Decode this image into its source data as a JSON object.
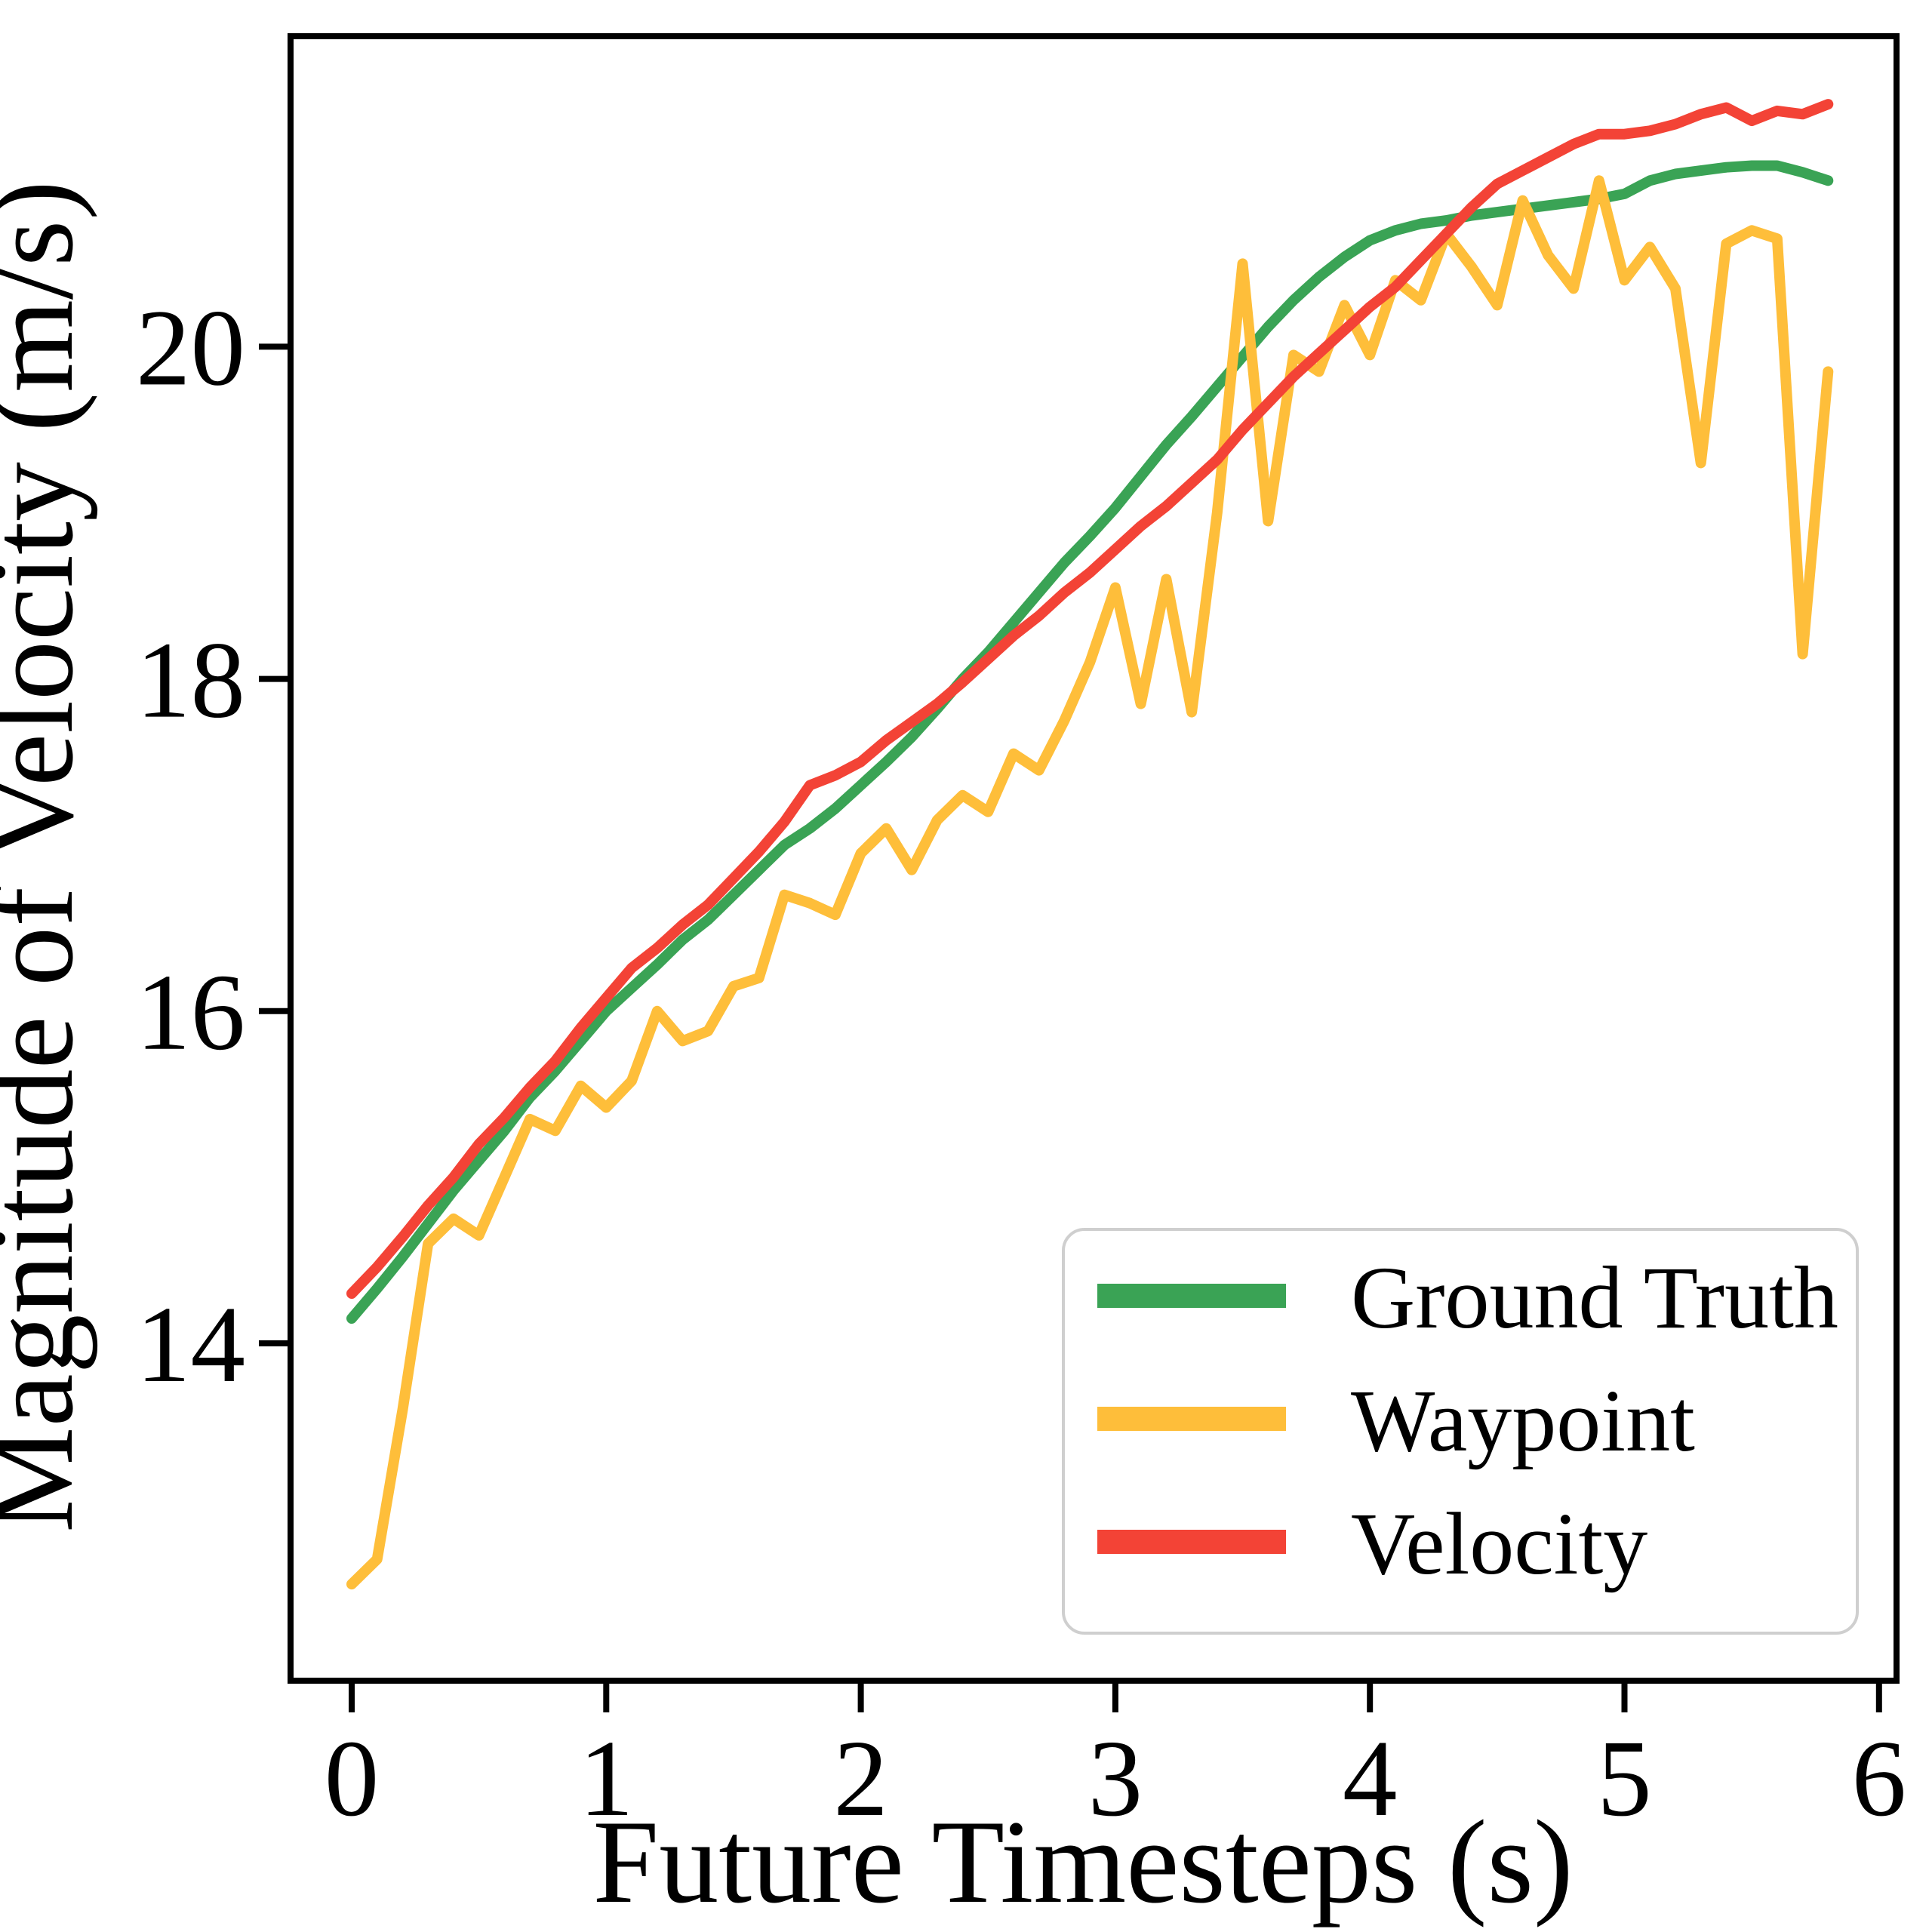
{
  "figure": {
    "background": "#ffffff",
    "plot_border_color": "#000000"
  },
  "axes": {
    "xlabel": "Future Timesteps (s)",
    "ylabel": "Magnitude of Velocity (m/s)"
  },
  "legend": {
    "position": "lower right",
    "entries": [
      {
        "label": "Ground Truth",
        "color": "#3AA355"
      },
      {
        "label": "Waypoint",
        "color": "#FEBE3A"
      },
      {
        "label": "Velocity",
        "color": "#F34336"
      }
    ]
  },
  "chart_data": {
    "type": "line",
    "title": "",
    "xlabel": "Future Timesteps (s)",
    "ylabel": "Magnitude of Velocity (m/s)",
    "x_ticks": [
      0,
      1,
      2,
      3,
      4,
      5,
      6
    ],
    "y_ticks": [
      14,
      16,
      18,
      20
    ],
    "xlim": [
      -0.25,
      6.07
    ],
    "ylim": [
      11.95,
      21.85
    ],
    "grid": false,
    "legend_position": "lower right",
    "x": [
      0.0,
      0.1,
      0.2,
      0.3,
      0.4,
      0.5,
      0.6,
      0.7,
      0.8,
      0.9,
      1.0,
      1.1,
      1.2,
      1.3,
      1.4,
      1.5,
      1.6,
      1.7,
      1.8,
      1.9,
      2.0,
      2.1,
      2.2,
      2.3,
      2.4,
      2.5,
      2.6,
      2.7,
      2.8,
      2.9,
      3.0,
      3.1,
      3.2,
      3.3,
      3.4,
      3.5,
      3.6,
      3.7,
      3.8,
      3.9,
      4.0,
      4.1,
      4.2,
      4.3,
      4.4,
      4.5,
      4.6,
      4.7,
      4.8,
      4.9,
      5.0,
      5.1,
      5.2,
      5.3,
      5.4,
      5.5,
      5.6,
      5.7,
      5.8
    ],
    "series": [
      {
        "name": "Ground Truth",
        "color": "#3AA355",
        "values": [
          14.15,
          14.33,
          14.52,
          14.72,
          14.92,
          15.1,
          15.28,
          15.48,
          15.64,
          15.82,
          16.0,
          16.14,
          16.28,
          16.43,
          16.55,
          16.7,
          16.85,
          17.0,
          17.1,
          17.22,
          17.36,
          17.5,
          17.65,
          17.82,
          18.0,
          18.16,
          18.34,
          18.52,
          18.7,
          18.86,
          19.03,
          19.22,
          19.41,
          19.58,
          19.76,
          19.94,
          20.12,
          20.28,
          20.42,
          20.54,
          20.64,
          20.7,
          20.74,
          20.76,
          20.79,
          20.81,
          20.83,
          20.85,
          20.87,
          20.89,
          20.92,
          21.0,
          21.04,
          21.06,
          21.08,
          21.09,
          21.09,
          21.05,
          21.0
        ]
      },
      {
        "name": "Waypoint",
        "color": "#FEBE3A",
        "values": [
          12.55,
          12.7,
          13.6,
          14.6,
          14.75,
          14.65,
          15.0,
          15.35,
          15.28,
          15.55,
          15.42,
          15.58,
          16.0,
          15.82,
          15.88,
          16.15,
          16.2,
          16.7,
          16.65,
          16.58,
          16.95,
          17.1,
          16.85,
          17.15,
          17.3,
          17.2,
          17.55,
          17.45,
          17.75,
          18.1,
          18.55,
          17.85,
          18.6,
          17.8,
          19.0,
          20.5,
          18.95,
          19.95,
          19.85,
          20.25,
          19.95,
          20.4,
          20.28,
          20.68,
          20.48,
          20.25,
          20.88,
          20.55,
          20.35,
          21.0,
          20.4,
          20.6,
          20.35,
          19.3,
          20.62,
          20.7,
          20.65,
          18.15,
          19.85
        ]
      },
      {
        "name": "Velocity",
        "color": "#F34336",
        "values": [
          14.3,
          14.46,
          14.64,
          14.83,
          15.0,
          15.2,
          15.36,
          15.54,
          15.7,
          15.9,
          16.08,
          16.26,
          16.38,
          16.52,
          16.64,
          16.8,
          16.96,
          17.14,
          17.36,
          17.42,
          17.5,
          17.63,
          17.74,
          17.85,
          17.98,
          18.12,
          18.26,
          18.38,
          18.52,
          18.64,
          18.78,
          18.92,
          19.04,
          19.18,
          19.32,
          19.5,
          19.66,
          19.82,
          19.96,
          20.1,
          20.24,
          20.36,
          20.52,
          20.68,
          20.84,
          20.98,
          21.06,
          21.14,
          21.22,
          21.28,
          21.28,
          21.3,
          21.34,
          21.4,
          21.44,
          21.36,
          21.42,
          21.4,
          21.46
        ]
      }
    ]
  }
}
